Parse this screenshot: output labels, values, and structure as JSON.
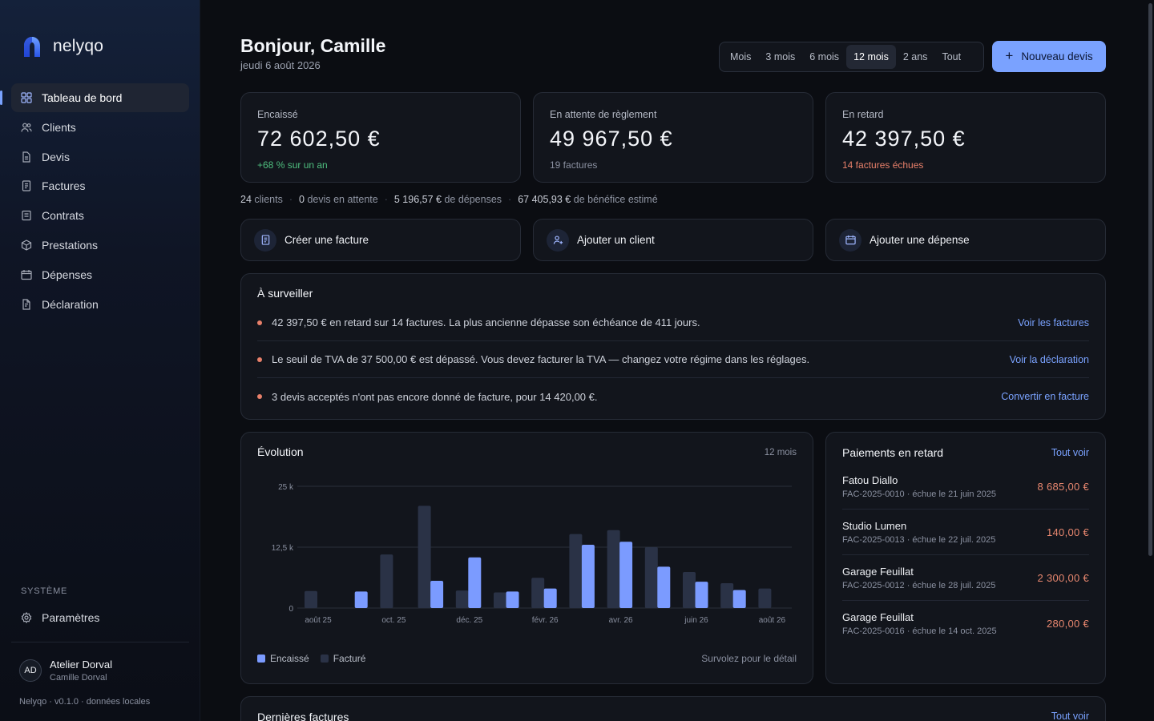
{
  "app": {
    "name": "nelyqo"
  },
  "nav": {
    "items": [
      {
        "label": "Tableau de bord",
        "icon": "dashboard-icon",
        "active": true
      },
      {
        "label": "Clients",
        "icon": "users-icon"
      },
      {
        "label": "Devis",
        "icon": "document-icon"
      },
      {
        "label": "Factures",
        "icon": "invoice-icon"
      },
      {
        "label": "Contrats",
        "icon": "contract-icon"
      },
      {
        "label": "Prestations",
        "icon": "box-icon"
      },
      {
        "label": "Dépenses",
        "icon": "wallet-icon"
      },
      {
        "label": "Déclaration",
        "icon": "declaration-icon"
      }
    ],
    "system_label": "SYSTÈME",
    "settings_label": "Paramètres"
  },
  "user": {
    "initials": "AD",
    "company": "Atelier Dorval",
    "name": "Camille Dorval"
  },
  "version": "Nelyqo · v0.1.0 · données locales",
  "header": {
    "greeting": "Bonjour, Camille",
    "date": "jeudi 6 août 2026",
    "ranges": [
      "Mois",
      "3 mois",
      "6 mois",
      "12 mois",
      "2 ans",
      "Tout"
    ],
    "active_range": "12 mois",
    "new_quote": "Nouveau devis"
  },
  "kpis": [
    {
      "label": "Encaissé",
      "value": "72 602,50 €",
      "sub": "+68 % sur un an",
      "color": "#4fbf7f"
    },
    {
      "label": "En attente de règlement",
      "value": "49 967,50 €",
      "sub": "19 factures",
      "color": "#8a90a0"
    },
    {
      "label": "En retard",
      "value": "42 397,50 €",
      "sub": "14 factures échues",
      "color": "#e8806a"
    }
  ],
  "stats": {
    "clients_num": "24",
    "clients_label": "clients",
    "quotes_num": "0",
    "quotes_label": "devis en attente",
    "expenses_num": "5 196,57 €",
    "expenses_label": "de dépenses",
    "profit_num": "67 405,93 €",
    "profit_label": "de bénéfice estimé"
  },
  "actions": [
    {
      "label": "Créer une facture",
      "icon": "invoice-icon"
    },
    {
      "label": "Ajouter un client",
      "icon": "add-user-icon"
    },
    {
      "label": "Ajouter une dépense",
      "icon": "wallet-icon"
    }
  ],
  "watch": {
    "title": "À surveiller",
    "items": [
      {
        "text": "42 397,50 € en retard sur 14 factures. La plus ancienne dépasse son échéance de 411 jours.",
        "link": "Voir les factures"
      },
      {
        "text": "Le seuil de TVA de 37 500,00 € est dépassé. Vous devez facturer la TVA — changez votre régime dans les réglages.",
        "link": "Voir la déclaration"
      },
      {
        "text": "3 devis acceptés n'ont pas encore donné de facture, pour 14 420,00 €.",
        "link": "Convertir en facture"
      }
    ]
  },
  "evolution": {
    "title": "Évolution",
    "range": "12 mois",
    "hint": "Survolez pour le détail",
    "legend": [
      "Encaissé",
      "Facturé"
    ]
  },
  "chart_data": {
    "type": "bar",
    "categories": [
      "août 25",
      "sept. 25",
      "oct. 25",
      "nov. 25",
      "déc. 25",
      "janv. 26",
      "févr. 26",
      "mars 26",
      "avr. 26",
      "mai 26",
      "juin 26",
      "juil. 26",
      "août 26"
    ],
    "tick_labels": [
      "août 25",
      "oct. 25",
      "déc. 25",
      "févr. 26",
      "avr. 26",
      "juin 26",
      "août 26"
    ],
    "yticks": [
      "0",
      "12,5 k",
      "25 k"
    ],
    "ylim": [
      0,
      25000
    ],
    "series": [
      {
        "name": "Facturé",
        "color": "#2a3246",
        "values": [
          3500,
          0,
          11000,
          21000,
          3600,
          3200,
          6200,
          15200,
          16000,
          12500,
          7400,
          5100,
          4000
        ]
      },
      {
        "name": "Encaissé",
        "color": "#7b9bff",
        "values": [
          0,
          3400,
          0,
          5600,
          10400,
          3400,
          4000,
          13000,
          13600,
          8500,
          5400,
          3700,
          0
        ]
      }
    ]
  },
  "late_payments": {
    "title": "Paiements en retard",
    "see_all": "Tout voir",
    "items": [
      {
        "name": "Fatou Diallo",
        "ref": "FAC-2025-0010 · échue le 21 juin 2025",
        "amount": "8 685,00 €"
      },
      {
        "name": "Studio Lumen",
        "ref": "FAC-2025-0013 · échue le 22 juil. 2025",
        "amount": "140,00 €"
      },
      {
        "name": "Garage Feuillat",
        "ref": "FAC-2025-0012 · échue le 28 juil. 2025",
        "amount": "2 300,00 €"
      },
      {
        "name": "Garage Feuillat",
        "ref": "FAC-2025-0016 · échue le 14 oct. 2025",
        "amount": "280,00 €"
      }
    ]
  },
  "recent": {
    "title": "Dernières factures",
    "see_all": "Tout voir"
  }
}
